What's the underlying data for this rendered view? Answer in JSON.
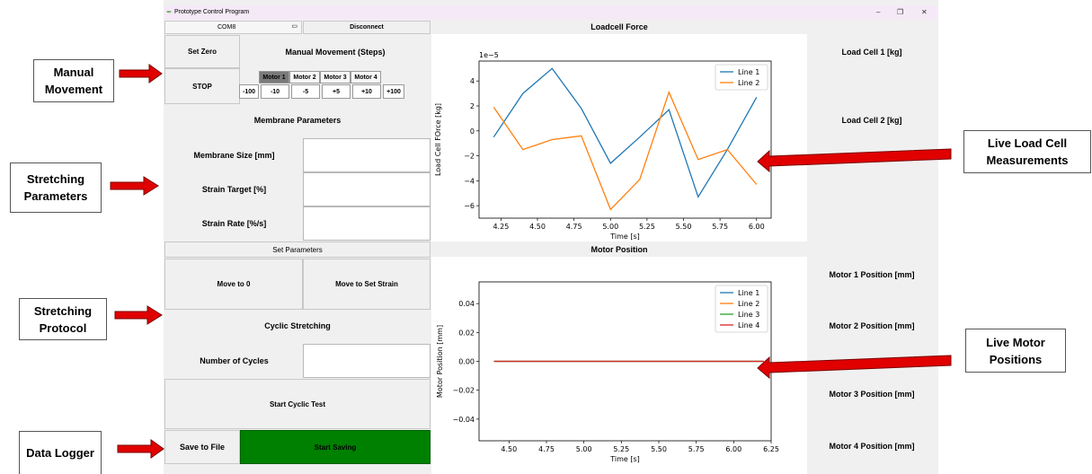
{
  "window": {
    "title": "Prototype Control Program"
  },
  "connection": {
    "port": "COM8",
    "disconnect_label": "Disconnect"
  },
  "manual": {
    "set_zero_label": "Set Zero",
    "stop_label": "STOP",
    "title": "Manual Movement (Steps)",
    "motors": [
      "Motor 1",
      "Motor 2",
      "Motor 3",
      "Motor 4"
    ],
    "steps": [
      "-100",
      "-10",
      "-5",
      "+5",
      "+10",
      "+100"
    ]
  },
  "membrane": {
    "title": "Membrane Parameters",
    "size_label": "Membrane Size [mm]",
    "strain_target_label": "Strain Target [%]",
    "strain_rate_label": "Strain Rate [%/s]",
    "set_parameters_label": "Set Parameters"
  },
  "protocol": {
    "move_zero_label": "Move to 0",
    "move_strain_label": "Move to Set Strain",
    "cyclic_title": "Cyclic Stretching",
    "cycles_label": "Number of Cycles",
    "start_cyclic_label": "Start Cyclic Test"
  },
  "logger": {
    "save_file_label": "Save to File",
    "start_saving_label": "Start Saving",
    "start_saving_color": "#008000"
  },
  "readouts": {
    "load_cell_1": "Load Cell 1 [kg]",
    "load_cell_2": "Load Cell 2 [kg]",
    "motor_1": "Motor 1 Position [mm]",
    "motor_2": "Motor 2 Position [mm]",
    "motor_3": "Motor 3 Position [mm]",
    "motor_4": "Motor 4 Position [mm]"
  },
  "callouts": {
    "manual": "Manual Movement",
    "stretching_params": "Stretching Parameters",
    "protocol": "Stretching Protocol",
    "logger": "Data Logger",
    "live_load": "Live Load Cell Measurements",
    "live_motor": "Live Motor Positions"
  },
  "chart_data": [
    {
      "type": "line",
      "title": "Loadcell Force",
      "xlabel": "Time [s]",
      "ylabel": "Load Cell FOrce [kg]",
      "yscale_label": "1e−5",
      "xlim": [
        4.1,
        6.1
      ],
      "ylim": [
        -7,
        5.6
      ],
      "xticks": [
        4.25,
        4.5,
        4.75,
        5.0,
        5.25,
        5.5,
        5.75,
        6.0
      ],
      "yticks": [
        -6,
        -4,
        -2,
        0,
        2,
        4
      ],
      "legend": "top-right",
      "x": [
        4.2,
        4.4,
        4.6,
        4.8,
        5.0,
        5.2,
        5.4,
        5.6,
        5.8,
        6.0
      ],
      "series": [
        {
          "name": "Line 1",
          "color": "#1f77b4",
          "values": [
            -0.5,
            3.0,
            5.0,
            1.8,
            -2.6,
            -0.5,
            1.7,
            -5.3,
            -1.5,
            2.7
          ]
        },
        {
          "name": "Line 2",
          "color": "#ff7f0e",
          "values": [
            1.9,
            -1.5,
            -0.7,
            -0.4,
            -6.3,
            -3.9,
            3.1,
            -2.3,
            -1.5,
            -4.3
          ]
        }
      ]
    },
    {
      "type": "line",
      "title": "Motor Position",
      "xlabel": "Time [s]",
      "ylabel": "Motor Position [mm]",
      "xlim": [
        4.3,
        6.25
      ],
      "ylim": [
        -0.055,
        0.055
      ],
      "xticks": [
        4.5,
        4.75,
        5.0,
        5.25,
        5.5,
        5.75,
        6.0,
        6.25
      ],
      "yticks": [
        -0.04,
        -0.02,
        0.0,
        0.02,
        0.04
      ],
      "legend": "top-right",
      "x": [
        4.4,
        6.2
      ],
      "series": [
        {
          "name": "Line 1",
          "color": "#1f77b4",
          "values": [
            0,
            0
          ]
        },
        {
          "name": "Line 2",
          "color": "#ff7f0e",
          "values": [
            0,
            0
          ]
        },
        {
          "name": "Line 3",
          "color": "#2ca02c",
          "values": [
            0,
            0
          ]
        },
        {
          "name": "Line 4",
          "color": "#d62728",
          "values": [
            0,
            0
          ]
        }
      ]
    }
  ]
}
